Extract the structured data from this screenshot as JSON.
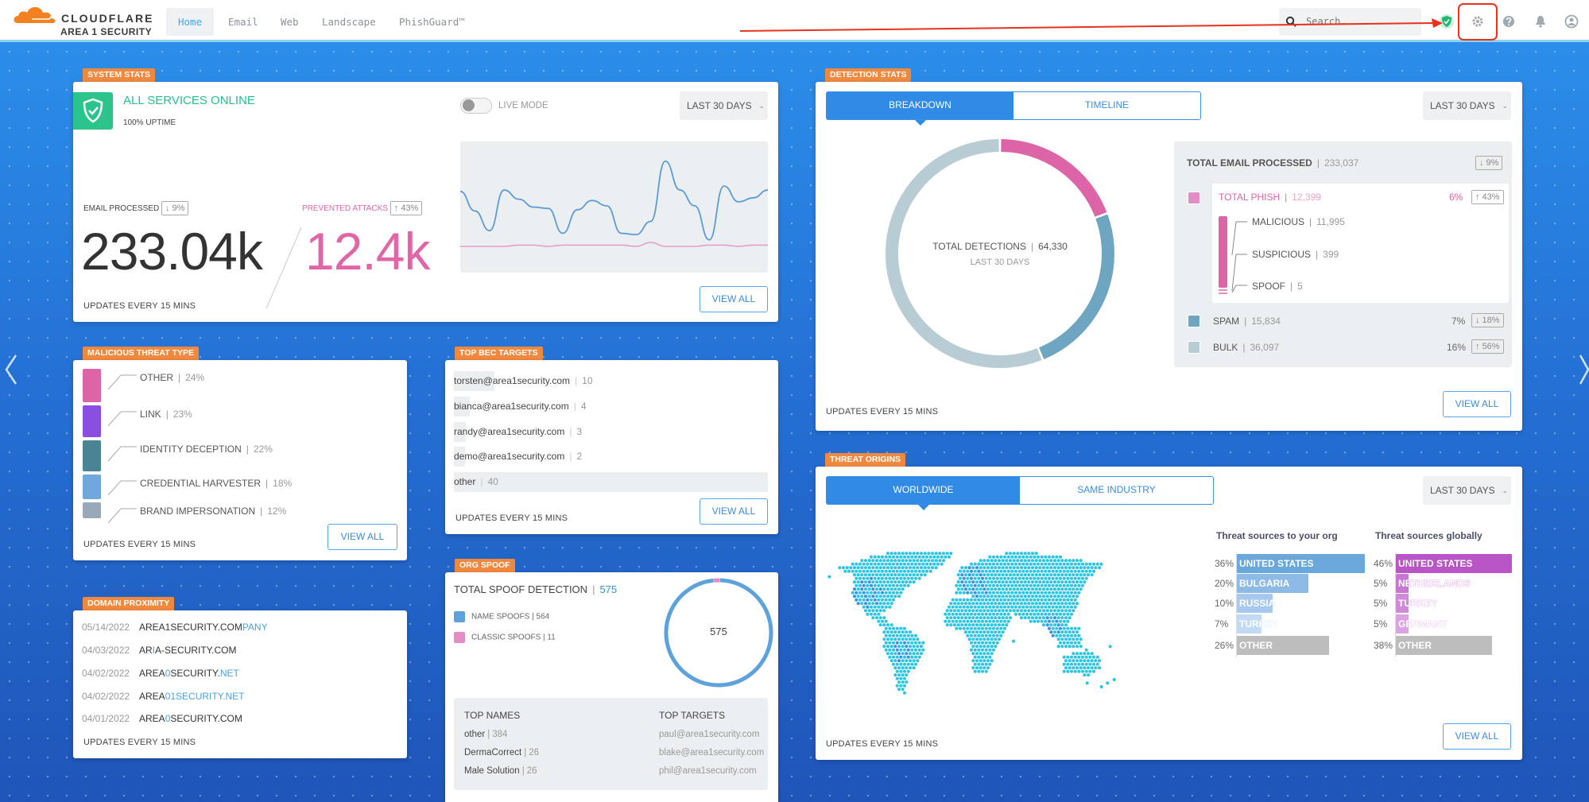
{
  "header": {
    "logo_brand": "CLOUDFLARE",
    "logo_product": "AREA 1 SECURITY",
    "nav": [
      {
        "label": "Home",
        "active": true
      },
      {
        "label": "Email"
      },
      {
        "label": "Web"
      },
      {
        "label": "Landscape"
      },
      {
        "label": "PhishGuard™"
      }
    ],
    "search_placeholder": "Search…",
    "icons": [
      "shield-check-icon",
      "gear-icon",
      "help-icon",
      "bell-icon",
      "user-icon"
    ],
    "annotation_color": "#e8321e"
  },
  "common": {
    "updates": "UPDATES EVERY 15 MINS",
    "view_all": "VIEW ALL",
    "period": "LAST 30 DAYS"
  },
  "system_stats": {
    "tag": "SYSTEM STATS",
    "status": "ALL SERVICES ONLINE",
    "uptime": "100% UPTIME",
    "live_mode": "LIVE MODE",
    "live_mode_on": false,
    "email_label": "EMAIL PROCESSED",
    "email_change": "↓ 9%",
    "email_value": "233.04k",
    "attacks_label": "PREVENTED ATTACKS",
    "attacks_change": "↑ 43%",
    "attacks_value": "12.4k",
    "sparkline": {
      "email": [
        62,
        47,
        32,
        63,
        56,
        50,
        49,
        30,
        48,
        55,
        51,
        30,
        29,
        39,
        85,
        63,
        51,
        25,
        66,
        54,
        57,
        63
      ],
      "attacks": [
        20,
        20,
        20,
        20,
        21,
        21,
        20,
        21,
        21,
        21,
        21,
        21,
        20,
        23,
        20,
        20,
        20,
        21,
        21,
        20,
        21,
        21
      ],
      "range": [
        0,
        100
      ],
      "colors": {
        "email": "#5b9bd5",
        "attacks": "#e59ac4"
      }
    }
  },
  "detection_stats": {
    "tag": "DETECTION STATS",
    "tabs": [
      "BREAKDOWN",
      "TIMELINE"
    ],
    "total_label": "TOTAL DETECTIONS",
    "total_value": "64,330",
    "total_sub": "LAST 30 DAYS",
    "donut": [
      {
        "name": "phish",
        "value": 12399,
        "color": "#de64a8"
      },
      {
        "name": "spam",
        "value": 15834,
        "color": "#6ea6c1"
      },
      {
        "name": "bulk",
        "value": 36097,
        "color": "#b8cdd3"
      }
    ],
    "processed_label": "TOTAL EMAIL PROCESSED",
    "processed_value": "233,037",
    "processed_change": "↓ 9%",
    "phish": {
      "label": "TOTAL PHISH",
      "value": "12,399",
      "pct": "6%",
      "change": "↑ 43%",
      "color": "#de64a8"
    },
    "phish_breakdown": [
      {
        "label": "MALICIOUS",
        "value": "11,995"
      },
      {
        "label": "SUSPICIOUS",
        "value": "399"
      },
      {
        "label": "SPOOF",
        "value": "5"
      }
    ],
    "spam": {
      "label": "SPAM",
      "value": "15,834",
      "pct": "7%",
      "change": "↓ 18%",
      "color": "#6ea6c1"
    },
    "bulk": {
      "label": "BULK",
      "value": "36,097",
      "pct": "16%",
      "change": "↑ 56%",
      "color": "#b8cdd3"
    }
  },
  "malicious_threat_type": {
    "tag": "MALICIOUS THREAT TYPE",
    "items": [
      {
        "label": "OTHER",
        "pct": "24%",
        "value": 24,
        "color": "#de64a8"
      },
      {
        "label": "LINK",
        "pct": "23%",
        "value": 23,
        "color": "#8a4fe0"
      },
      {
        "label": "IDENTITY DECEPTION",
        "pct": "22%",
        "value": 22,
        "color": "#4a8494"
      },
      {
        "label": "CREDENTIAL HARVESTER",
        "pct": "18%",
        "value": 18,
        "color": "#6fa8dc"
      },
      {
        "label": "BRAND IMPERSONATION",
        "pct": "12%",
        "value": 12,
        "color": "#98a8b8"
      }
    ]
  },
  "top_bec_targets": {
    "tag": "TOP BEC TARGETS",
    "items": [
      {
        "email": "torsten@area1security.com",
        "count": "10",
        "value": 10
      },
      {
        "email": "bianca@area1security.com",
        "count": "4",
        "value": 4
      },
      {
        "email": "randy@area1security.com",
        "count": "3",
        "value": 3
      },
      {
        "email": "demo@area1security.com",
        "count": "2",
        "value": 2
      },
      {
        "email": "other",
        "count": "40",
        "value": 40
      }
    ]
  },
  "domain_proximity": {
    "tag": "DOMAIN PROXIMITY",
    "items": [
      {
        "date": "05/14/2022",
        "parts": [
          {
            "t": "AREA1SECURITY.COM"
          },
          {
            "t": "PANY",
            "hl": true
          }
        ]
      },
      {
        "date": "04/03/2022",
        "parts": [
          {
            "t": "AR"
          },
          {
            "t": "I",
            "hl": true
          },
          {
            "t": "A-SECURITY.COM"
          }
        ]
      },
      {
        "date": "04/02/2022",
        "parts": [
          {
            "t": "AREA"
          },
          {
            "t": "0",
            "hl": true
          },
          {
            "t": "SECURITY."
          },
          {
            "t": "NET",
            "hl": true
          }
        ]
      },
      {
        "date": "04/02/2022",
        "parts": [
          {
            "t": "AREA"
          },
          {
            "t": "01SECURITY.NET",
            "hl": true
          }
        ]
      },
      {
        "date": "04/01/2022",
        "parts": [
          {
            "t": "AREA"
          },
          {
            "t": "0",
            "hl": true
          },
          {
            "t": "SECURITY.COM"
          }
        ]
      }
    ]
  },
  "org_spoof": {
    "tag": "ORG SPOOF",
    "total_label": "TOTAL SPOOF DETECTION",
    "total_value": "575",
    "legend": [
      {
        "label": "NAME SPOOFS",
        "value": "564",
        "n": 564,
        "color": "#5ea2dc"
      },
      {
        "label": "CLASSIC SPOOFS",
        "value": "11",
        "n": 11,
        "color": "#e48cc4"
      }
    ],
    "center": "575",
    "top_names_label": "TOP NAMES",
    "top_names": [
      {
        "name": "other",
        "count": "384"
      },
      {
        "name": "DermaCorrect",
        "count": "26"
      },
      {
        "name": "Male Solution",
        "count": "26"
      }
    ],
    "top_targets_label": "TOP TARGETS",
    "top_targets": [
      "paul@area1security.com",
      "blake@area1security.com",
      "phil@area1security.com"
    ]
  },
  "threat_origins": {
    "tag": "THREAT ORIGINS",
    "tabs": [
      "WORLDWIDE",
      "SAME INDUSTRY"
    ],
    "org_title": "Threat sources to your org",
    "org": [
      {
        "country": "UNITED STATES",
        "pct": "36%",
        "value": 36,
        "color": "#6aa7da"
      },
      {
        "country": "BULGARIA",
        "pct": "20%",
        "value": 20,
        "color": "#8ebbe6"
      },
      {
        "country": "RUSSIA",
        "pct": "10%",
        "value": 10,
        "color": "#a7c9ee"
      },
      {
        "country": "TURKEY",
        "pct": "7%",
        "value": 7,
        "color": "#c2daf3"
      },
      {
        "country": "OTHER",
        "pct": "26%",
        "value": 26,
        "color": "#bdbdbd"
      }
    ],
    "global_title": "Threat sources globally",
    "global": [
      {
        "country": "UNITED STATES",
        "pct": "46%",
        "value": 46,
        "color": "#b955c6"
      },
      {
        "country": "NETHERLANDS",
        "pct": "5%",
        "value": 5,
        "color": "#c878d3"
      },
      {
        "country": "TURKEY",
        "pct": "5%",
        "value": 5,
        "color": "#d08ad9"
      },
      {
        "country": "GERMANY",
        "pct": "5%",
        "value": 5,
        "color": "#dca3e3"
      },
      {
        "country": "OTHER",
        "pct": "38%",
        "value": 38,
        "color": "#bdbdbd"
      }
    ],
    "map_colors": {
      "base": "#2ec5e2",
      "hot": "#3f8fe2"
    }
  }
}
